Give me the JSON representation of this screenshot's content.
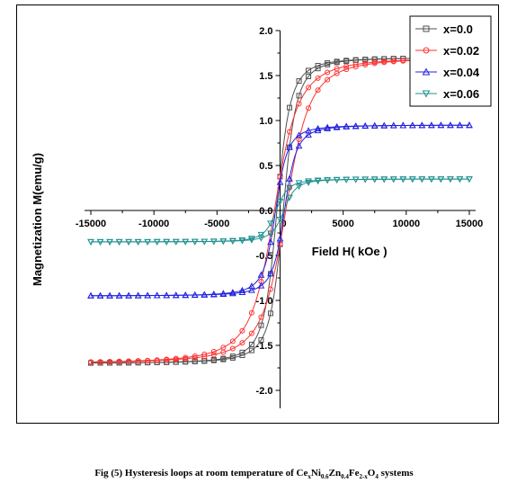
{
  "chart_data": {
    "type": "line",
    "xlabel": "Field H( kOe )",
    "ylabel": "Magnetization M(emu/g)",
    "xlim": [
      -16000,
      16000
    ],
    "ylim": [
      -2.2,
      2.0
    ],
    "x_ticks": [
      -15000,
      -10000,
      -5000,
      0,
      5000,
      10000,
      15000
    ],
    "y_ticks": [
      2.0,
      1.5,
      1.0,
      0.5,
      0.0,
      -0.5,
      -1.0,
      -1.5,
      -2.0
    ],
    "x_tick_labels": [
      "-15000",
      "-10000",
      "-5000",
      "0",
      "5000",
      "10000",
      "15000"
    ],
    "y_tick_labels": [
      "2.0",
      "1.5",
      "1.0",
      "0.5",
      "0.0",
      "-0.5",
      "-1.0",
      "-1.5",
      "-2.0"
    ],
    "legend_position": "top-right",
    "series": [
      {
        "name": "x=0.0",
        "color": "#505050",
        "marker": "square",
        "ms": 1.7,
        "coercivity": 250,
        "h0": 1100
      },
      {
        "name": "x=0.02",
        "color": "#ff3030",
        "marker": "circle",
        "ms": 1.7,
        "coercivity": 450,
        "h0": 2000
      },
      {
        "name": "x=0.04",
        "color": "#2020e0",
        "marker": "triangle-up",
        "ms": 0.95,
        "coercivity": 350,
        "h0": 1000
      },
      {
        "name": "x=0.06",
        "color": "#209090",
        "marker": "triangle-down",
        "ms": 0.35,
        "coercivity": 300,
        "h0": 1000
      }
    ]
  },
  "caption": {
    "prefix": "Fig (5) Hysteresis loops at room temperature of Ce",
    "s1": "x",
    "t1": "Ni",
    "s2": "0.6",
    "t2": "Zn",
    "s3": "0.4",
    "t3": "Fe",
    "s4": "2-x",
    "t4": "O",
    "s5": "4",
    "suffix": " systems"
  }
}
